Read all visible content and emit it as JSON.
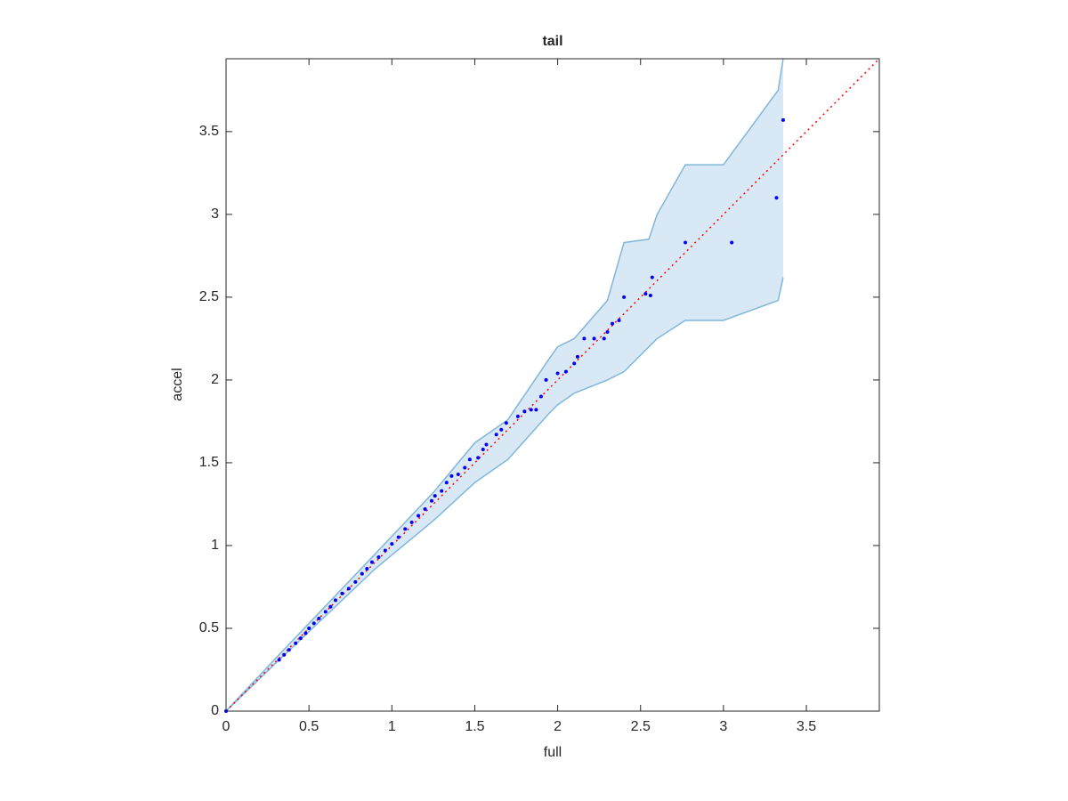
{
  "chart_data": {
    "type": "scatter",
    "title": "tail",
    "x_label": "full",
    "y_label": "accel",
    "xlim": [
      0,
      3.94
    ],
    "ylim": [
      0,
      3.94
    ],
    "xticks": [
      0,
      0.5,
      1,
      1.5,
      2,
      2.5,
      3,
      3.5
    ],
    "yticks": [
      0,
      0.5,
      1,
      1.5,
      2,
      2.5,
      3,
      3.5
    ],
    "points": {
      "color": "#0000ff",
      "x": [
        0,
        0.32,
        0.35,
        0.38,
        0.42,
        0.45,
        0.48,
        0.5,
        0.53,
        0.56,
        0.6,
        0.63,
        0.66,
        0.7,
        0.74,
        0.78,
        0.82,
        0.85,
        0.88,
        0.92,
        0.96,
        1.0,
        1.04,
        1.08,
        1.12,
        1.16,
        1.2,
        1.24,
        1.26,
        1.3,
        1.33,
        1.36,
        1.4,
        1.44,
        1.47,
        1.52,
        1.55,
        1.57,
        1.63,
        1.66,
        1.69,
        1.76,
        1.8,
        1.84,
        1.87,
        1.9,
        1.93,
        2.0,
        2.05,
        2.1,
        2.12,
        2.16,
        2.22,
        2.28,
        2.3,
        2.33,
        2.37,
        2.4,
        2.53,
        2.56,
        2.57,
        2.77,
        3.05,
        3.32,
        3.36
      ],
      "y": [
        0,
        0.31,
        0.34,
        0.37,
        0.41,
        0.44,
        0.47,
        0.5,
        0.53,
        0.56,
        0.6,
        0.63,
        0.67,
        0.71,
        0.74,
        0.78,
        0.83,
        0.86,
        0.9,
        0.93,
        0.97,
        1.01,
        1.05,
        1.1,
        1.14,
        1.18,
        1.22,
        1.27,
        1.3,
        1.33,
        1.38,
        1.42,
        1.43,
        1.47,
        1.52,
        1.53,
        1.58,
        1.61,
        1.67,
        1.7,
        1.74,
        1.78,
        1.81,
        1.82,
        1.82,
        1.9,
        2.0,
        2.04,
        2.05,
        2.1,
        2.14,
        2.25,
        2.25,
        2.25,
        2.29,
        2.34,
        2.36,
        2.5,
        2.52,
        2.51,
        2.62,
        2.83,
        2.83,
        3.1,
        3.57
      ]
    },
    "band": {
      "fill": "#d9e8f5",
      "edge": "#7fb7dc",
      "x": [
        0,
        0.3,
        0.9,
        1.25,
        1.5,
        1.7,
        1.95,
        2.0,
        2.1,
        2.3,
        2.4,
        2.55,
        2.6,
        2.77,
        3.0,
        3.33,
        3.36
      ],
      "upper": [
        0,
        0.32,
        0.95,
        1.32,
        1.62,
        1.76,
        2.13,
        2.2,
        2.25,
        2.48,
        2.83,
        2.85,
        3.0,
        3.3,
        3.3,
        3.75,
        3.94
      ],
      "lower": [
        0,
        0.29,
        0.86,
        1.15,
        1.38,
        1.52,
        1.8,
        1.85,
        1.92,
        2.0,
        2.05,
        2.2,
        2.25,
        2.36,
        2.36,
        2.48,
        2.62
      ]
    },
    "reference_line": {
      "color": "#ff0000",
      "x": [
        0,
        3.94
      ],
      "y": [
        0,
        3.94
      ]
    }
  }
}
